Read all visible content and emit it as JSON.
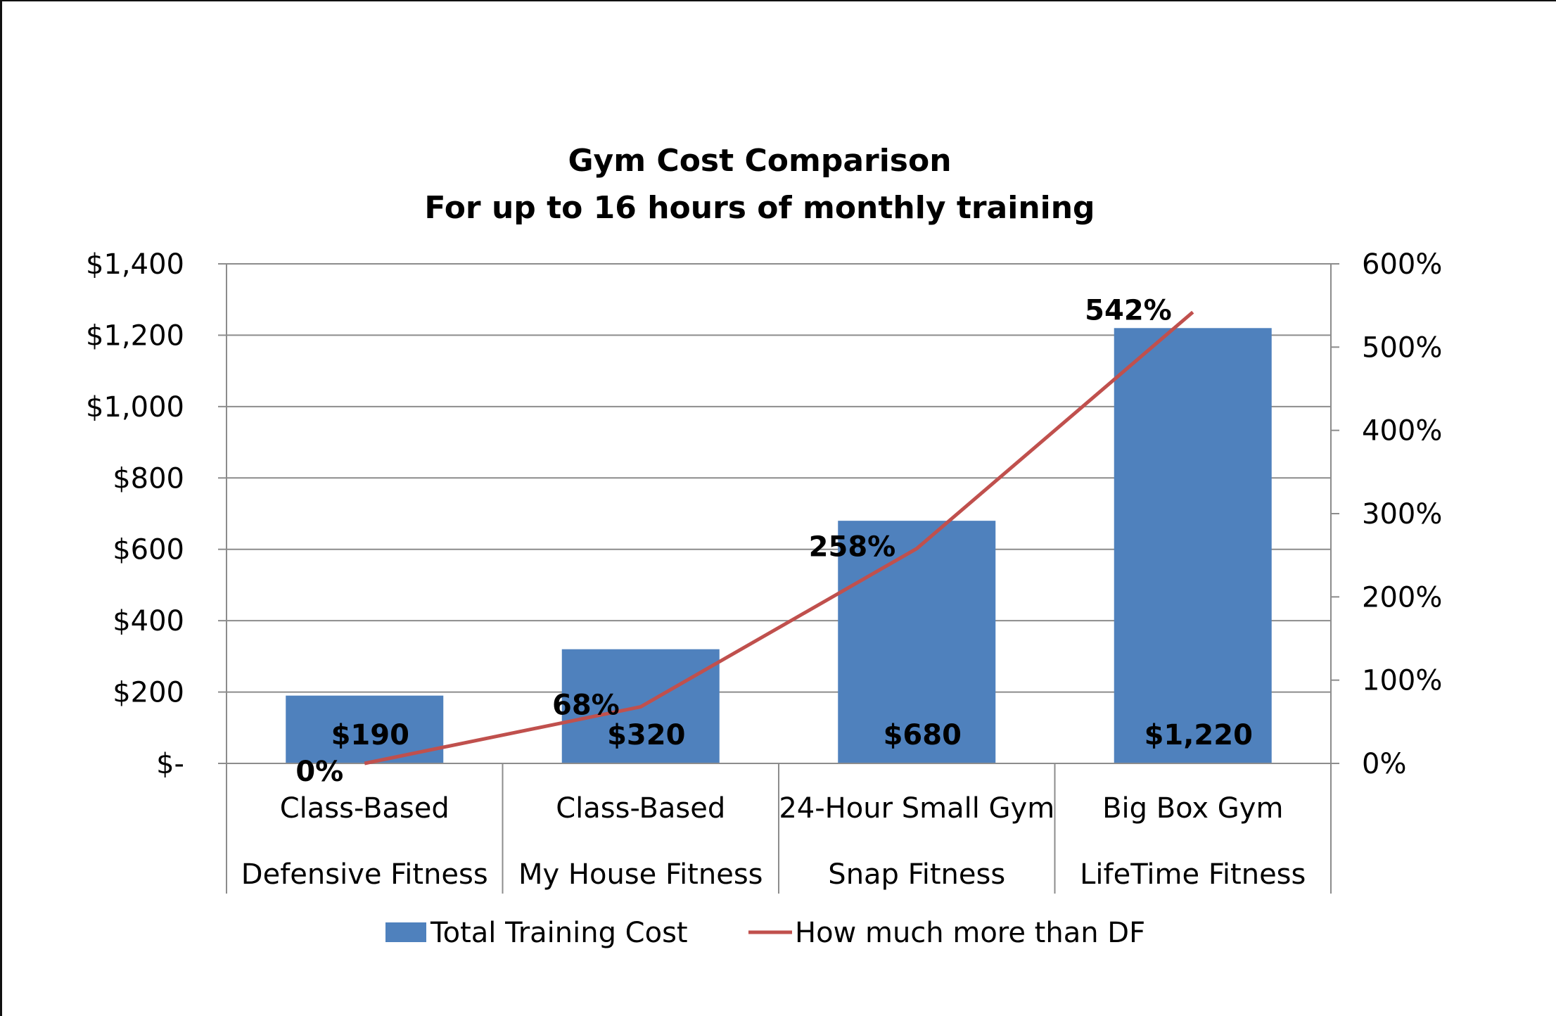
{
  "chart_data": {
    "type": "bar",
    "title": "Gym Cost Comparison",
    "subtitle": "For up to 16 hours of monthly training",
    "categories": [
      [
        "Class-Based",
        "Defensive Fitness"
      ],
      [
        "Class-Based",
        "My House Fitness"
      ],
      [
        "24-Hour Small Gym",
        "Snap Fitness"
      ],
      [
        "Big Box Gym",
        "LifeTime Fitness"
      ]
    ],
    "series": [
      {
        "name": "Total Training Cost",
        "type": "bar",
        "axis": "left",
        "color": "#4F81BD",
        "values": [
          190,
          320,
          680,
          1220
        ],
        "labels": [
          "$190",
          "$320",
          "$680",
          "$1,220"
        ]
      },
      {
        "name": "How much more than DF",
        "type": "line",
        "axis": "right",
        "color": "#C0504D",
        "values": [
          0,
          68,
          258,
          542
        ],
        "labels": [
          "0%",
          "68%",
          "258%",
          "542%"
        ]
      }
    ],
    "ylim": [
      0,
      1400
    ],
    "y_ticks": [
      "$-",
      "$200",
      "$400",
      "$600",
      "$800",
      "$1,000",
      "$1,200",
      "$1,400"
    ],
    "y2lim": [
      0,
      600
    ],
    "y2_ticks": [
      "0%",
      "100%",
      "200%",
      "300%",
      "400%",
      "500%",
      "600%"
    ],
    "grid": true,
    "legend_position": "bottom"
  }
}
